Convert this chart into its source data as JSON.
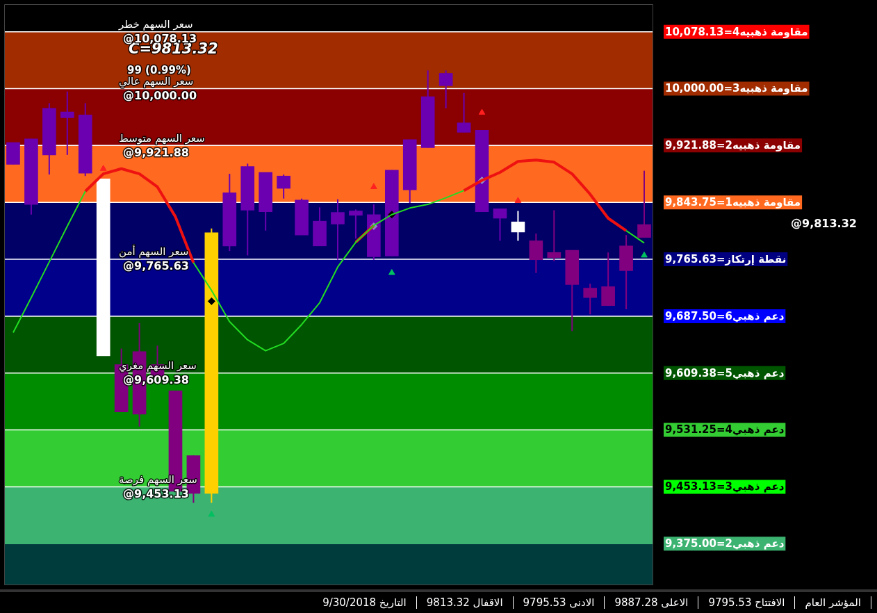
{
  "chart_data": {
    "type": "candlestick",
    "title": "C=9813.32",
    "subtitle": "99 (0.99%)",
    "categories": [
      null,
      null,
      null,
      null,
      null,
      null,
      null,
      null,
      null,
      null,
      null,
      null,
      null,
      null,
      null,
      null,
      null,
      null,
      null,
      null,
      null,
      null,
      null,
      null,
      null,
      null,
      null,
      null,
      null,
      null,
      null,
      null,
      null,
      null,
      null,
      null
    ],
    "ohlc": [
      [
        9926,
        9926,
        9896,
        9896
      ],
      [
        9931,
        9931,
        9827,
        9841
      ],
      [
        9973,
        9980,
        9882,
        9909
      ],
      [
        9968,
        9996,
        9909,
        9960
      ],
      [
        9964,
        9980,
        9880,
        9884
      ],
      [
        9876,
        9876,
        9633,
        9633
      ],
      [
        9556,
        9643,
        9556,
        9621
      ],
      [
        9553,
        9678,
        9536,
        9639
      ],
      [
        9605,
        9647,
        9605,
        9621
      ],
      [
        9447,
        9585,
        9447,
        9585
      ],
      [
        9444,
        9496,
        9431,
        9496
      ],
      [
        9444,
        9808,
        9431,
        9802
      ],
      [
        9857,
        9883,
        9777,
        9784
      ],
      [
        9893,
        9897,
        9771,
        9833
      ],
      [
        9885,
        9885,
        9805,
        9831
      ],
      [
        9880,
        9882,
        9849,
        9863
      ],
      [
        9847,
        9849,
        9799,
        9799
      ],
      [
        9818,
        9837,
        9784,
        9784
      ],
      [
        9830,
        9848,
        9765,
        9814
      ],
      [
        9832,
        9834,
        9794,
        9826
      ],
      [
        9827,
        9841,
        9765,
        9769
      ],
      [
        9888,
        9888,
        9770,
        9770
      ],
      [
        9930,
        9930,
        9843,
        9861
      ],
      [
        9989,
        10025,
        9919,
        9919
      ],
      [
        10021,
        10025,
        9973,
        10004
      ],
      [
        9953,
        9994,
        9940,
        9940
      ],
      [
        9943,
        9943,
        9831,
        9831
      ],
      [
        9835,
        9835,
        9791,
        9822
      ],
      [
        9817,
        9832,
        9791,
        9803
      ],
      [
        9765,
        9801,
        9747,
        9791
      ],
      [
        9768,
        9833,
        9763,
        9775
      ],
      [
        9731,
        9778,
        9667,
        9778
      ],
      [
        9713,
        9732,
        9690,
        9726
      ],
      [
        9702,
        9775,
        9702,
        9728
      ],
      [
        9750,
        9799,
        9697,
        9784
      ],
      [
        9795.53,
        9887.28,
        9795.53,
        9813.32
      ]
    ],
    "colors": [
      "#6a00b0",
      "#6a00b0",
      "#6a00b0",
      "#6a00b0",
      "#6a00b0",
      "#ffffff",
      "#800080",
      "#800080",
      "#800080",
      "#800080",
      "#800080",
      "#ffd000",
      "#6a00b0",
      "#6a00b0",
      "#6a00b0",
      "#6a00b0",
      "#6a00b0",
      "#6a00b0",
      "#6a00b0",
      "#6a00b0",
      "#6a00b0",
      "#6a00b0",
      "#6a00b0",
      "#6a00b0",
      "#6a00b0",
      "#6a00b0",
      "#6a00b0",
      "#6a00b0",
      "#ffffff",
      "#800080",
      "#800080",
      "#800080",
      "#800080",
      "#800080",
      "#800080",
      "#800080"
    ],
    "series": [
      {
        "type": "line",
        "color": "#22dd22",
        "values": [
          9665,
          9713,
          9762,
          9811,
          9859,
          null,
          null,
          null,
          null,
          null,
          9761,
          9723,
          9680,
          9655,
          9640,
          9650,
          9676,
          9706,
          9755,
          9789,
          9812,
          9827,
          9836,
          9841,
          9850,
          9860,
          null,
          null,
          null,
          null,
          null,
          null,
          null,
          null,
          9805,
          9788
        ]
      },
      {
        "type": "line",
        "color": "#ee1111",
        "values": [
          null,
          null,
          null,
          null,
          9859,
          9883,
          9890,
          9883,
          9865,
          9824,
          9761,
          null,
          null,
          null,
          null,
          null,
          null,
          null,
          null,
          9789,
          9812,
          null,
          null,
          null,
          null,
          9860,
          9874,
          9885,
          9900,
          9902,
          9899,
          9883,
          9855,
          9822,
          9805,
          null
        ]
      },
      {
        "type": "scatter",
        "marker": "triangle",
        "color": "#ff2020",
        "values": [
          null,
          null,
          null,
          null,
          null,
          9890,
          null,
          null,
          null,
          null,
          null,
          null,
          null,
          null,
          null,
          null,
          null,
          null,
          null,
          null,
          9865,
          null,
          null,
          null,
          null,
          null,
          9967,
          null,
          9846,
          null,
          null,
          null,
          null,
          null,
          null,
          null
        ]
      },
      {
        "type": "scatter",
        "marker": "triangle",
        "color": "#00c060",
        "values": [
          null,
          null,
          null,
          null,
          null,
          null,
          null,
          null,
          null,
          null,
          null,
          9415,
          null,
          null,
          null,
          null,
          null,
          null,
          null,
          null,
          null,
          9747,
          null,
          null,
          null,
          null,
          null,
          null,
          null,
          null,
          null,
          null,
          null,
          null,
          null,
          9771
        ]
      },
      {
        "type": "scatter",
        "marker": "diamond",
        "color": "#9090c8",
        "values": [
          null,
          null,
          null,
          null,
          null,
          null,
          null,
          null,
          null,
          null,
          null,
          null,
          null,
          null,
          null,
          null,
          null,
          null,
          null,
          null,
          9811,
          null,
          null,
          null,
          null,
          null,
          9874,
          null,
          null,
          null,
          null,
          null,
          null,
          null,
          null,
          null
        ]
      },
      {
        "type": "scatter",
        "marker": "diamond",
        "color": "#000000",
        "values": [
          null,
          null,
          null,
          null,
          null,
          null,
          null,
          null,
          null,
          null,
          null,
          9708,
          null,
          null,
          null,
          null,
          null,
          null,
          null,
          null,
          null,
          9827,
          null,
          null,
          null,
          null,
          null,
          null,
          null,
          null,
          null,
          null,
          null,
          null,
          null,
          null
        ]
      }
    ],
    "ylim": [
      9318,
      10116
    ],
    "yticks": [
      {
        "value": 10078.13,
        "label": "@10,078.13"
      },
      {
        "value": 10000,
        "label": "@10,000.00"
      },
      {
        "value": 9921.88,
        "label": "@9,921.88"
      },
      {
        "value": 9765.63,
        "label": "@9,765.63"
      },
      {
        "value": 9609.38,
        "label": "@9,609.38"
      },
      {
        "value": 9453.13,
        "label": "@9,453.13"
      }
    ],
    "bands": [
      {
        "axis": "y",
        "from": 10000,
        "to": 10078.13,
        "color": "#a02c00"
      },
      {
        "axis": "y",
        "from": 9921.88,
        "to": 10000,
        "color": "#8b0000"
      },
      {
        "axis": "y",
        "from": 9843.75,
        "to": 9921.88,
        "color": "#ff6a20"
      },
      {
        "axis": "y",
        "from": 9765.63,
        "to": 9843.75,
        "color": "#000066"
      },
      {
        "axis": "y",
        "from": 9687.5,
        "to": 9765.63,
        "color": "#00008b"
      },
      {
        "axis": "y",
        "from": 9609.38,
        "to": 9687.5,
        "color": "#005500"
      },
      {
        "axis": "y",
        "from": 9531.25,
        "to": 9609.38,
        "color": "#008c00"
      },
      {
        "axis": "y",
        "from": 9453.13,
        "to": 9531.25,
        "color": "#33cc33"
      },
      {
        "axis": "y",
        "from": 9375,
        "to": 9453.13,
        "color": "#3cb371"
      },
      {
        "axis": "y",
        "from": 9318,
        "to": 9375,
        "color": "#003c3c"
      }
    ],
    "ref_lines": [
      {
        "axis": "y",
        "value": 10078.13,
        "label": "مقاومة ذهبيه4=10,078.13",
        "color": "#ffffff"
      },
      {
        "axis": "y",
        "value": 10000,
        "label": "مقاومة ذهبيه3=10,000.00",
        "color": "#ffffff"
      },
      {
        "axis": "y",
        "value": 9921.88,
        "label": "مقاومة ذهبيه2=9,921.88",
        "color": "#ffffff"
      },
      {
        "axis": "y",
        "value": 9843.75,
        "label": "مقاومة ذهبيه1=9,843.75",
        "color": "#ffffff"
      },
      {
        "axis": "y",
        "value": 9765.63,
        "label": "نقطة إرتكاز=9,765.63",
        "color": "#ffffff"
      },
      {
        "axis": "y",
        "value": 9687.5,
        "label": "دعم ذهبي6=9,687.50",
        "color": "#ffffff"
      },
      {
        "axis": "y",
        "value": 9609.38,
        "label": "دعم ذهبي5=9,609.38",
        "color": "#ffffff"
      },
      {
        "axis": "y",
        "value": 9531.25,
        "label": "دعم ذهبي4=9,531.25",
        "color": "#ffffff"
      },
      {
        "axis": "y",
        "value": 9453.13,
        "label": "دعم ذهبي3=9,453.13",
        "color": "#ffffff"
      },
      {
        "axis": "y",
        "value": 9375,
        "label": "دعم ذهبي2=9,375.00",
        "color": "#3cb371"
      }
    ],
    "annotations": [
      {
        "text": "سعر السهم خطر",
        "y": 10078.13
      },
      {
        "text": "سعر السهم عالي",
        "y": 10000
      },
      {
        "text": "سعر السهم متوسط",
        "y": 9921.88
      },
      {
        "text": "سعر السهم أمن",
        "y": 9765.63
      },
      {
        "text": "سعر السهم مغري",
        "y": 9609.38
      },
      {
        "text": "سعر السهم فرصة",
        "y": 9453.13
      },
      "@9,813.32",
      "المؤشر العام",
      "الافتتاح 9795.53",
      "الاعلى 9887.28",
      "الادنى 9795.53",
      "الاقفال 9813.32",
      "التاريخ 9/30/2018"
    ]
  }
}
